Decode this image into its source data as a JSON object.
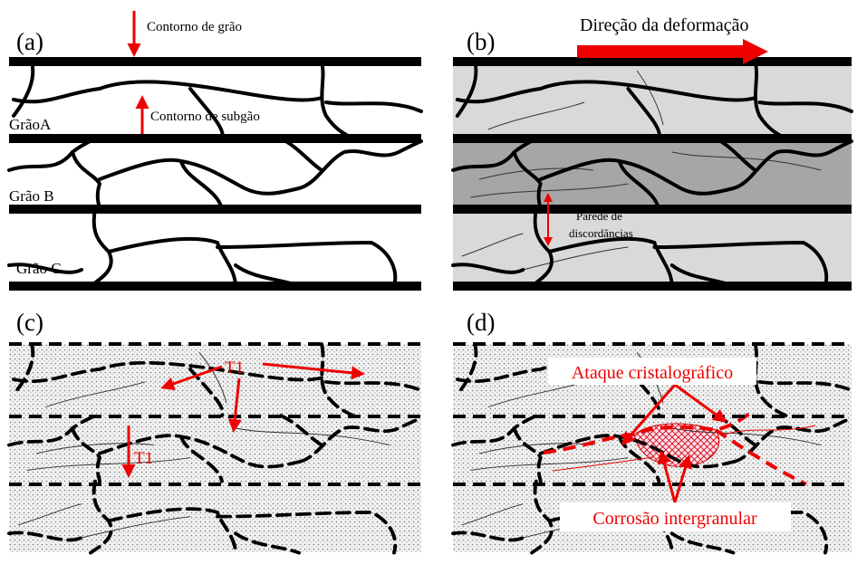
{
  "panel_a": {
    "label": "(a)",
    "grain_boundary": "Contorno de grão",
    "subgrain_boundary": "Contorno de subgão",
    "grains": [
      "GrãoA",
      "Grão B",
      "Grão C"
    ]
  },
  "panel_b": {
    "label": "(b)",
    "deformation_direction": "Direção da deformação",
    "dislocation_wall": [
      "Parede de",
      "discordâncias"
    ]
  },
  "panel_c": {
    "label": "(c)",
    "markers": [
      "T1",
      "T1"
    ]
  },
  "panel_d": {
    "label": "(d)",
    "crystallographic_attack": "Ataque cristalográfico",
    "intergranular_corrosion": "Corrosão intergranular"
  }
}
